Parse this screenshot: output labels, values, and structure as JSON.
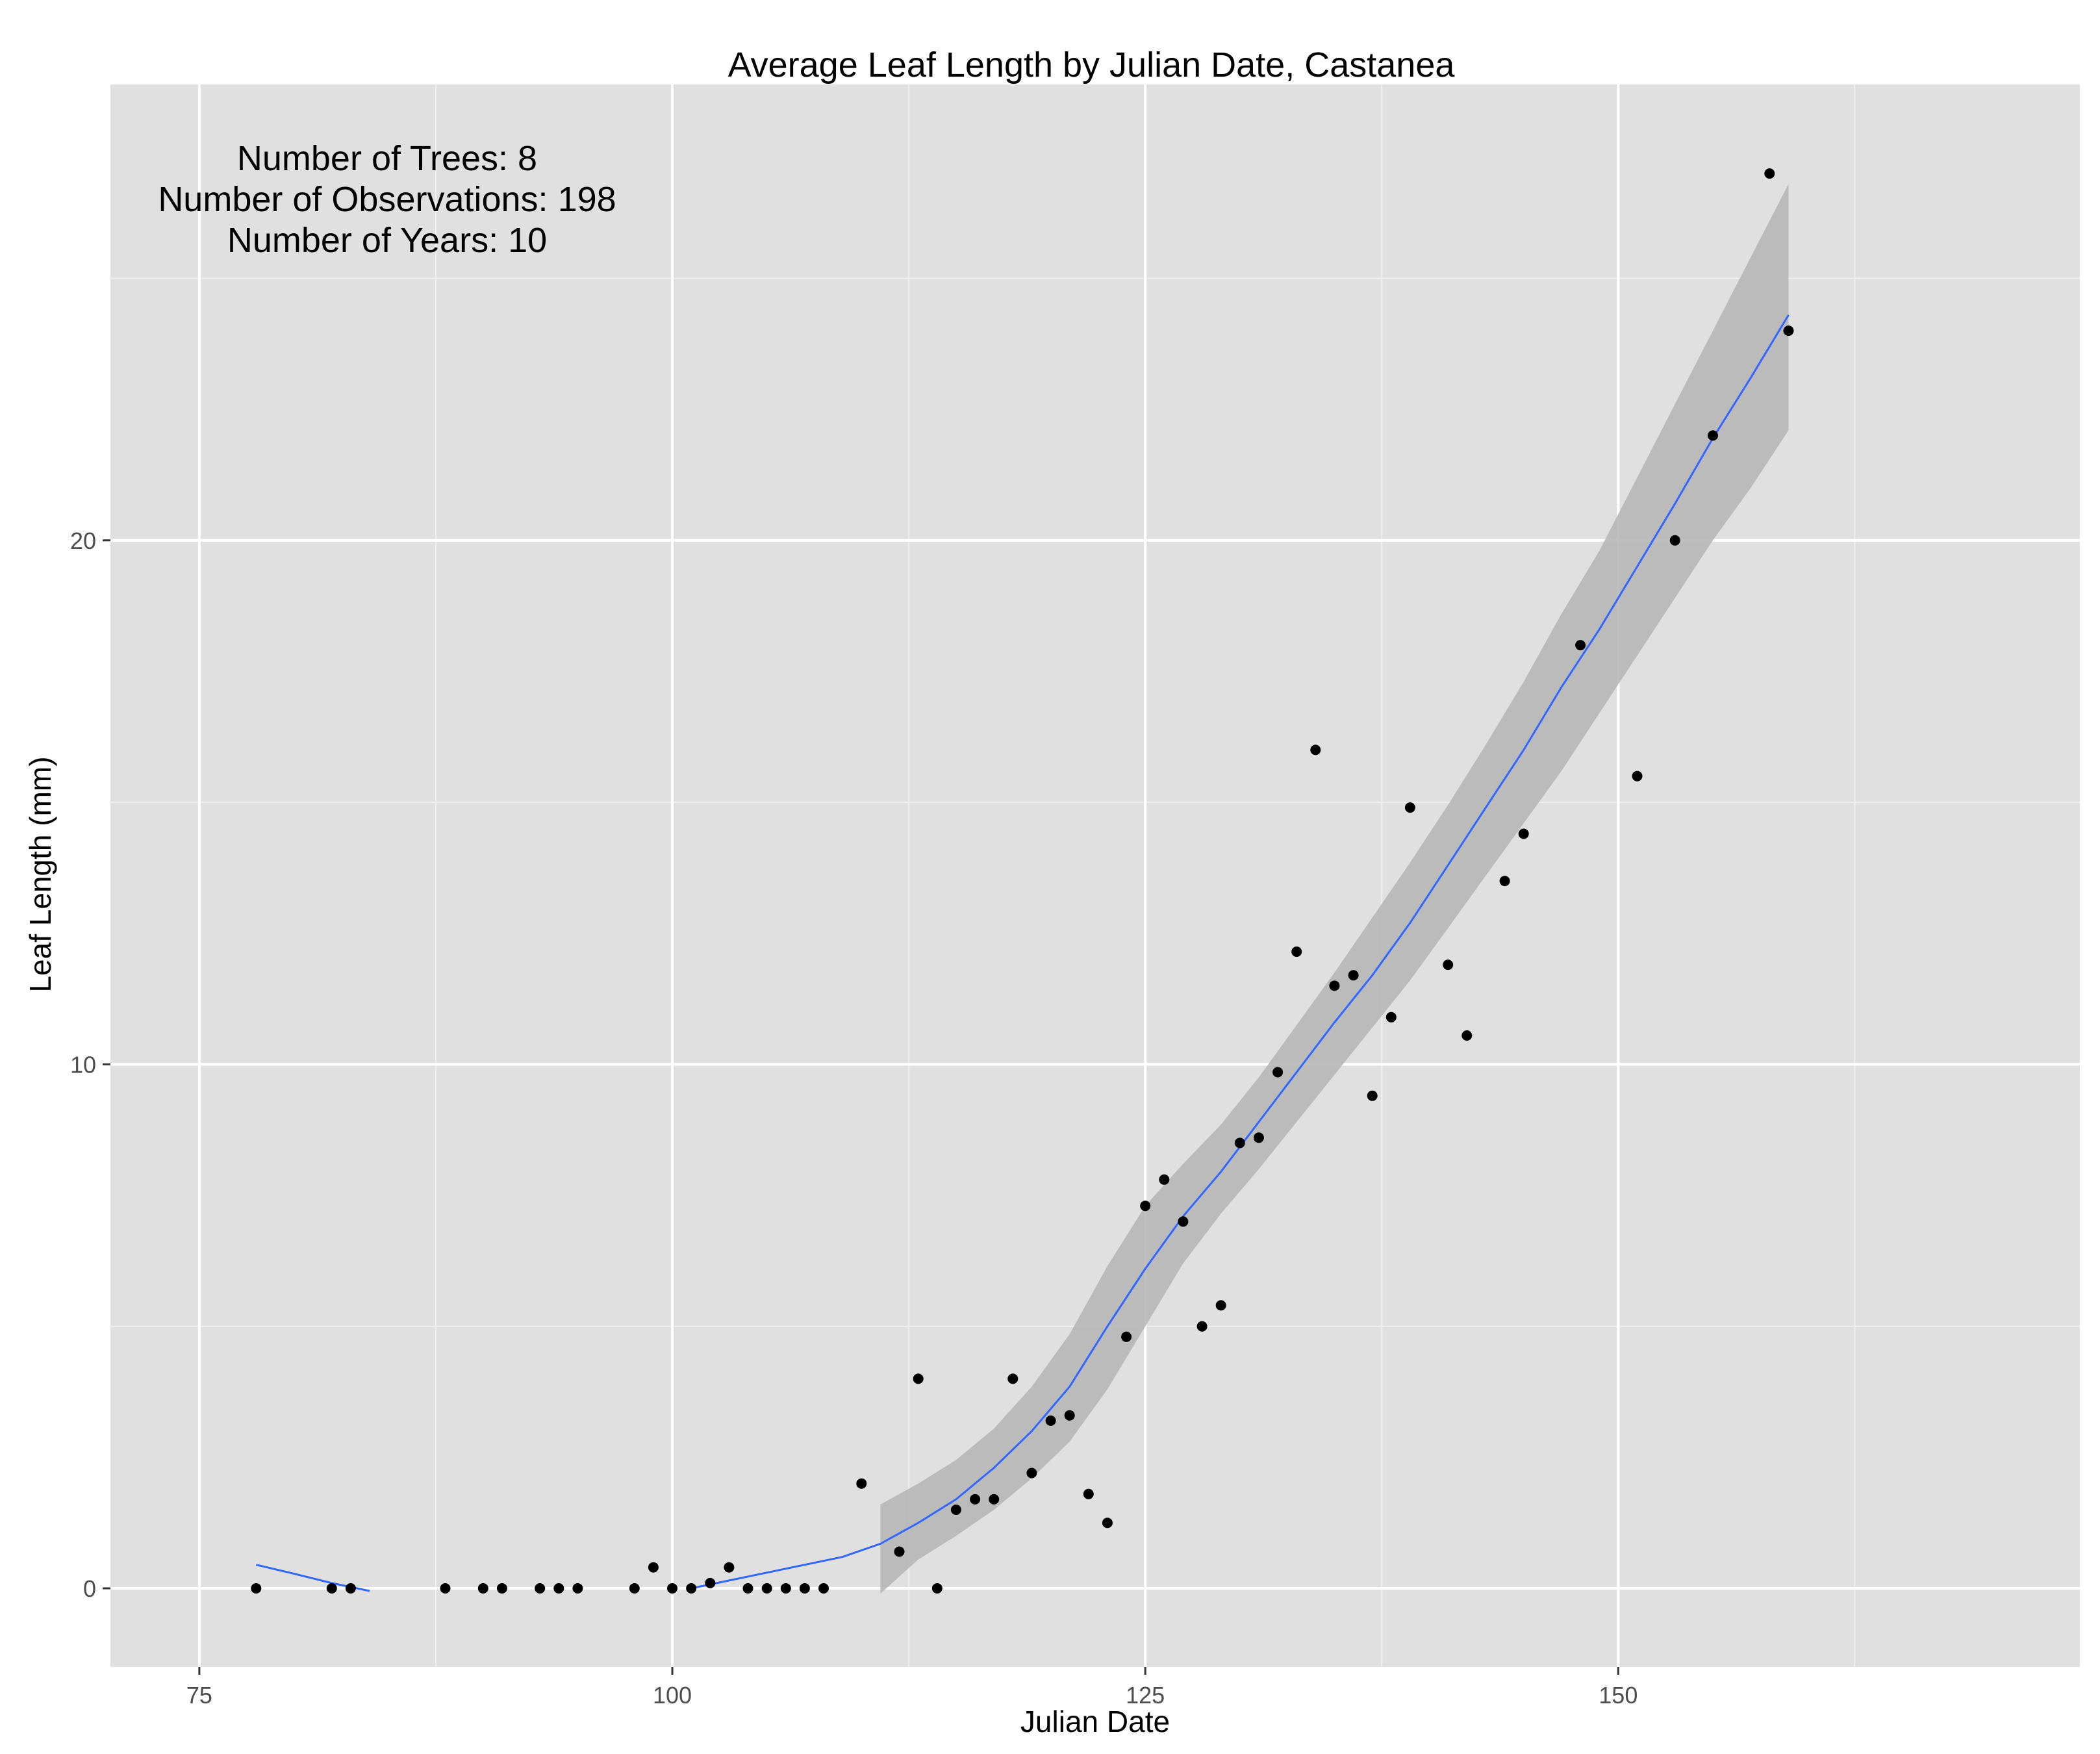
{
  "chart_data": {
    "type": "scatter",
    "title": "Average Leaf Length by Julian Date, Castanea",
    "xlabel": "Julian Date",
    "ylabel": "Leaf Length (mm)",
    "xlim": [
      70.3,
      174.4
    ],
    "ylim": [
      -1.5,
      28.7
    ],
    "x_ticks": [
      75,
      100,
      125,
      150
    ],
    "y_ticks": [
      0,
      10,
      20
    ],
    "x_tick_labels": [
      "75",
      "100",
      "125",
      "150"
    ],
    "y_tick_labels": [
      "0",
      "10",
      "20"
    ],
    "grid": true,
    "legend": "none",
    "annotation_lines": [
      "Number of Trees: 8",
      "Number of Observations: 198",
      "Number of Years: 10"
    ],
    "colors": {
      "panel": "#e0e0e0",
      "grid_major": "#ffffff",
      "grid_minor": "#f0f0f0",
      "points": "#000000",
      "smooth_line": "#3366ff",
      "ribbon": "#b4b4b4"
    },
    "points": [
      [
        78,
        0
      ],
      [
        82,
        0
      ],
      [
        83,
        0
      ],
      [
        88,
        0
      ],
      [
        90,
        0
      ],
      [
        91,
        0
      ],
      [
        93,
        0
      ],
      [
        94,
        0
      ],
      [
        95,
        0
      ],
      [
        98,
        0
      ],
      [
        99,
        0.4
      ],
      [
        100,
        0
      ],
      [
        101,
        0
      ],
      [
        102,
        0.1
      ],
      [
        103,
        0.4
      ],
      [
        104,
        0
      ],
      [
        105,
        0
      ],
      [
        106,
        0
      ],
      [
        107,
        0
      ],
      [
        108,
        0
      ],
      [
        110,
        2.0
      ],
      [
        112,
        0.7
      ],
      [
        113,
        4.0
      ],
      [
        114,
        0
      ],
      [
        115,
        1.5
      ],
      [
        116,
        1.7
      ],
      [
        117,
        1.7
      ],
      [
        118,
        4.0
      ],
      [
        119,
        2.2
      ],
      [
        120,
        3.2
      ],
      [
        121,
        3.3
      ],
      [
        122,
        1.8
      ],
      [
        123,
        1.25
      ],
      [
        124,
        4.8
      ],
      [
        125,
        7.3
      ],
      [
        126,
        7.8
      ],
      [
        127,
        7.0
      ],
      [
        128,
        5.0
      ],
      [
        129,
        5.4
      ],
      [
        130,
        8.5
      ],
      [
        131,
        8.6
      ],
      [
        132,
        9.85
      ],
      [
        133,
        12.15
      ],
      [
        134,
        16.0
      ],
      [
        135,
        11.5
      ],
      [
        136,
        11.7
      ],
      [
        137,
        9.4
      ],
      [
        138,
        10.9
      ],
      [
        139,
        14.9
      ],
      [
        141,
        11.9
      ],
      [
        142,
        10.55
      ],
      [
        144,
        13.5
      ],
      [
        145,
        14.4
      ],
      [
        148,
        18.0
      ],
      [
        151,
        15.5
      ],
      [
        153,
        20.0
      ],
      [
        155,
        22.0
      ],
      [
        158,
        27.0
      ],
      [
        159,
        24.0
      ]
    ],
    "smooth_segments": [
      {
        "x": [
          78,
          80,
          82,
          84
        ],
        "y": [
          0.45,
          0.28,
          0.1,
          -0.05
        ]
      },
      {
        "x": [
          101,
          103,
          105,
          107,
          109,
          111,
          113,
          115,
          117,
          119,
          121,
          123,
          125,
          127,
          129,
          131,
          133,
          135,
          137,
          139,
          141,
          143,
          145,
          147,
          149,
          151,
          153,
          155,
          157,
          159
        ],
        "y": [
          0.0,
          0.15,
          0.3,
          0.45,
          0.6,
          0.85,
          1.25,
          1.7,
          2.3,
          3.0,
          3.85,
          5.0,
          6.1,
          7.1,
          7.95,
          8.9,
          9.85,
          10.8,
          11.7,
          12.7,
          13.8,
          14.9,
          16.0,
          17.2,
          18.3,
          19.5,
          20.7,
          21.95,
          23.1,
          24.3
        ]
      }
    ],
    "ribbon": {
      "x": [
        111,
        113,
        115,
        117,
        119,
        121,
        123,
        125,
        127,
        129,
        131,
        133,
        135,
        137,
        139,
        141,
        143,
        145,
        147,
        149,
        151,
        153,
        155,
        157,
        159
      ],
      "lower": [
        -0.1,
        0.55,
        1.0,
        1.5,
        2.1,
        2.8,
        3.8,
        5.0,
        6.2,
        7.15,
        8.0,
        8.9,
        9.8,
        10.7,
        11.6,
        12.6,
        13.6,
        14.6,
        15.6,
        16.7,
        17.8,
        18.9,
        20.0,
        21.0,
        22.1
      ],
      "upper": [
        1.6,
        2.0,
        2.45,
        3.05,
        3.85,
        4.85,
        6.15,
        7.3,
        8.1,
        8.85,
        9.75,
        10.75,
        11.75,
        12.8,
        13.85,
        14.95,
        16.1,
        17.3,
        18.6,
        19.8,
        21.2,
        22.6,
        24.0,
        25.4,
        26.8
      ]
    }
  }
}
